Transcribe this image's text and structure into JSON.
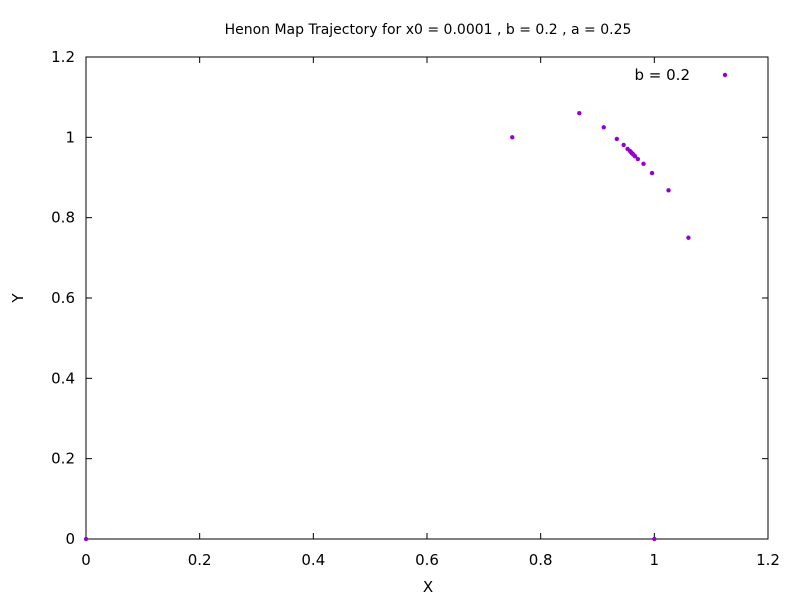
{
  "chart_data": {
    "type": "scatter",
    "title": "Henon Map Trajectory for x0 = 0.0001 , b = 0.2 , a = 0.25",
    "xlabel": "X",
    "ylabel": "Y",
    "xlim": [
      0,
      1.2
    ],
    "ylim": [
      0,
      1.2
    ],
    "x_ticks": [
      "0",
      "0.2",
      "0.4",
      "0.6",
      "0.8",
      "1",
      "1.2"
    ],
    "y_ticks": [
      "0",
      "0.2",
      "0.4",
      "0.6",
      "0.8",
      "1",
      "1.2"
    ],
    "x_tick_values": [
      0,
      0.2,
      0.4,
      0.6,
      0.8,
      1.0,
      1.2
    ],
    "y_tick_values": [
      0,
      0.2,
      0.4,
      0.6,
      0.8,
      1.0,
      1.2
    ],
    "grid": false,
    "legend_position": "top-right",
    "series": [
      {
        "name": "b = 0.2",
        "color": "#9400d3",
        "marker": "dot",
        "points": [
          {
            "x": 0.0001,
            "y": 0.0
          },
          {
            "x": 1.0,
            "y": 0.0
          },
          {
            "x": 0.75,
            "y": 1.0
          },
          {
            "x": 1.06,
            "y": 0.75
          },
          {
            "x": 0.868,
            "y": 1.06
          },
          {
            "x": 1.025,
            "y": 0.868
          },
          {
            "x": 0.911,
            "y": 1.025
          },
          {
            "x": 0.996,
            "y": 0.911
          },
          {
            "x": 0.934,
            "y": 0.996
          },
          {
            "x": 0.981,
            "y": 0.934
          },
          {
            "x": 0.946,
            "y": 0.981
          },
          {
            "x": 0.971,
            "y": 0.946
          },
          {
            "x": 0.953,
            "y": 0.971
          },
          {
            "x": 0.966,
            "y": 0.953
          },
          {
            "x": 0.957,
            "y": 0.966
          },
          {
            "x": 0.963,
            "y": 0.957
          },
          {
            "x": 0.959,
            "y": 0.963
          },
          {
            "x": 0.962,
            "y": 0.959
          },
          {
            "x": 0.96,
            "y": 0.961
          }
        ]
      }
    ]
  }
}
